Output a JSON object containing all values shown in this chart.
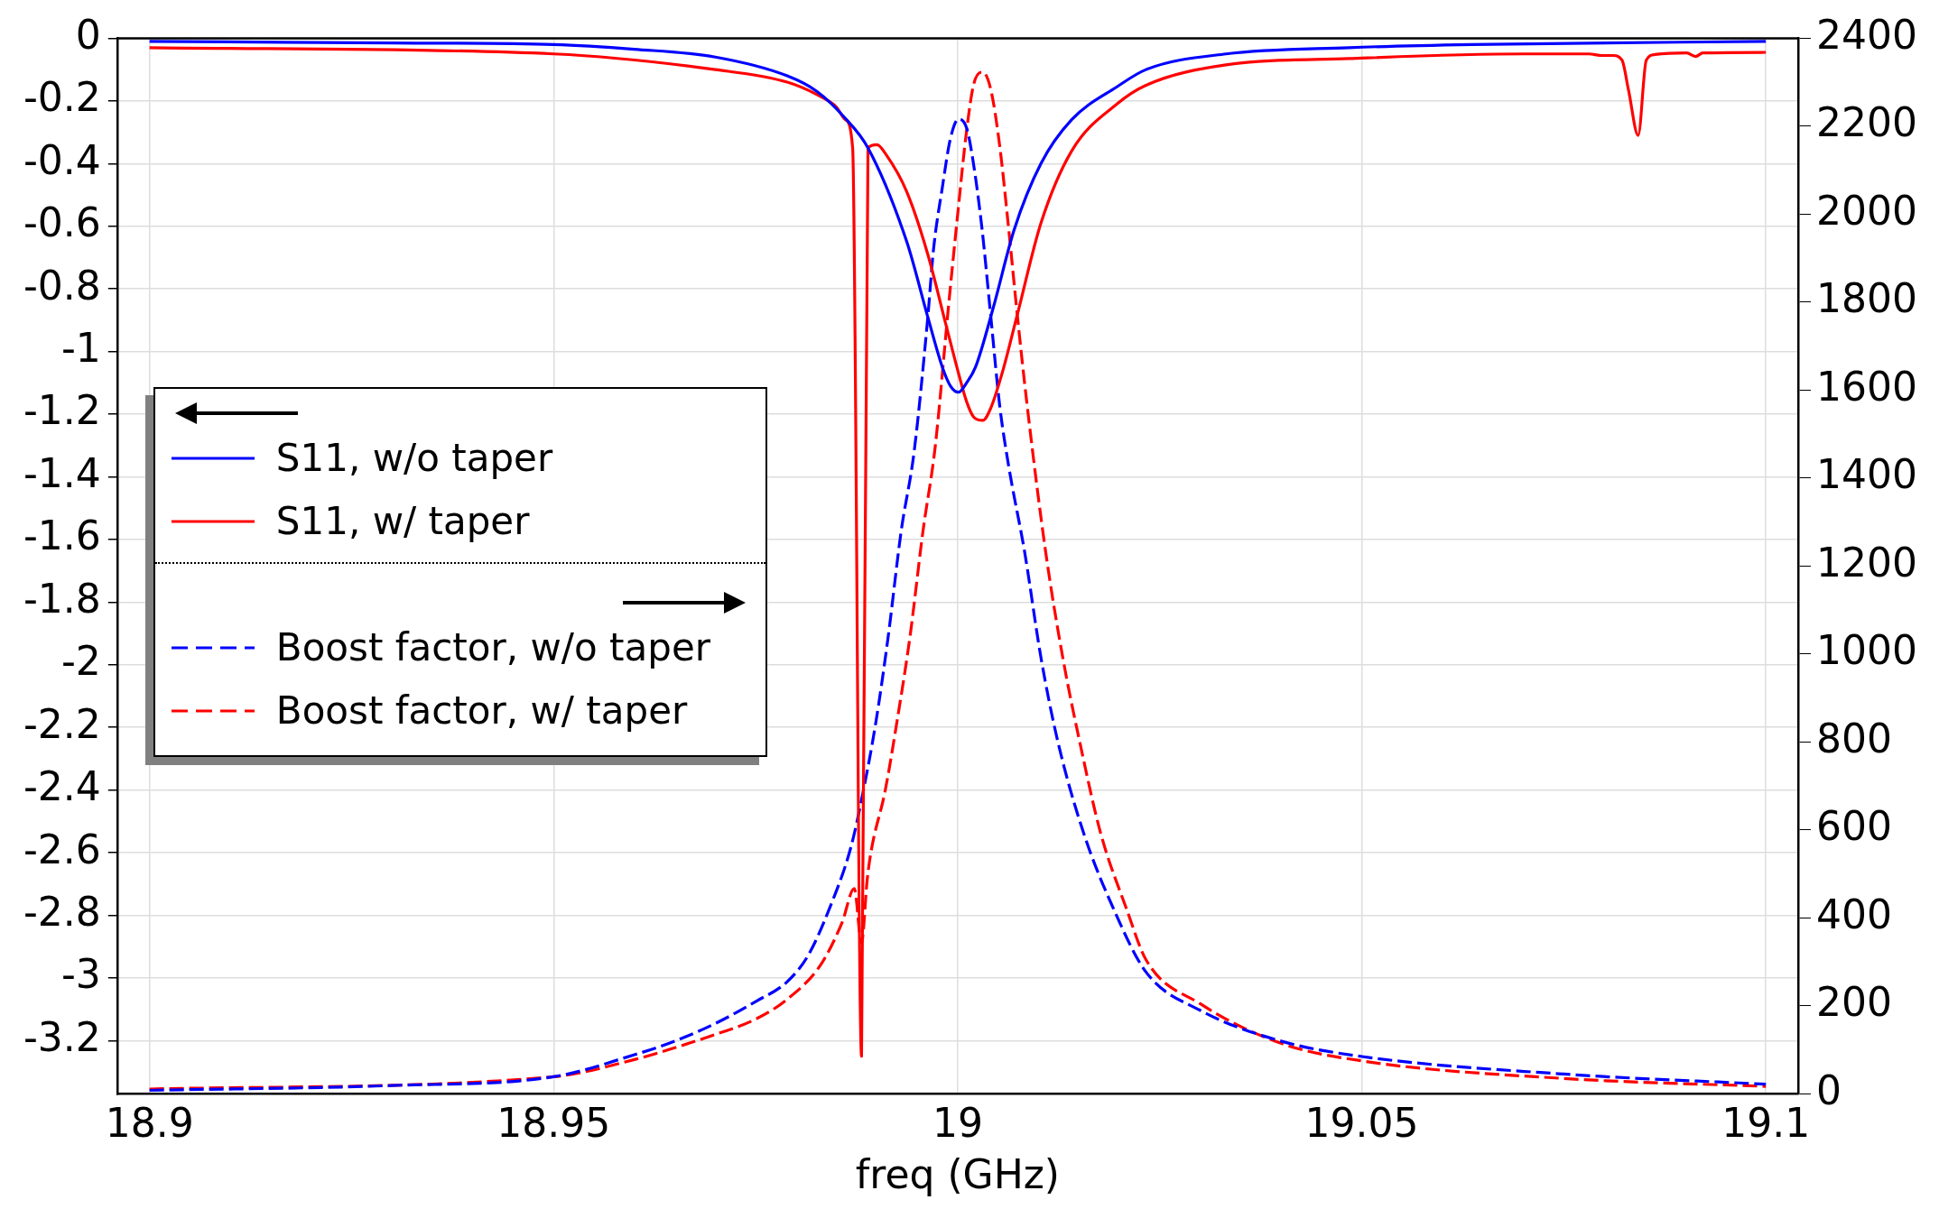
{
  "chart_data": {
    "type": "line",
    "xlabel": "freq (GHz)",
    "marker": "none",
    "grid": true,
    "legend": "left",
    "xlim": [
      18.896,
      19.104
    ],
    "xticks": [
      18.9,
      18.95,
      19,
      19.05,
      19.1
    ],
    "ylim": [
      -3.37,
      0
    ],
    "yticks": [
      -3.2,
      -3,
      -2.8,
      -2.6,
      -2.4,
      -2.2,
      -2,
      -1.8,
      -1.6,
      -1.4,
      -1.2,
      -1,
      -0.8,
      -0.6,
      -0.4,
      -0.2,
      0
    ],
    "y2lim": [
      0,
      2400
    ],
    "y2ticks": [
      0,
      200,
      400,
      600,
      800,
      1000,
      1200,
      1400,
      1600,
      1800,
      2000,
      2200,
      2400
    ],
    "series": [
      {
        "name": "S11, w/o taper",
        "color": "#0000ff",
        "axis": "y",
        "line_style": "solid",
        "x": [
          18.9,
          18.93,
          18.95,
          18.96,
          18.97,
          18.9789,
          18.9826,
          18.9859,
          18.9889,
          18.9937,
          18.9963,
          18.9981,
          18.9991,
          19.0001,
          19.0011,
          19.0022,
          19.0044,
          19.007,
          19.0103,
          19.0141,
          19.0197,
          19.0233,
          19.0332,
          19.0484,
          19.0636,
          19.1
        ],
        "values": [
          -0.01,
          -0.015,
          -0.02,
          -0.035,
          -0.06,
          -0.12,
          -0.17,
          -0.25,
          -0.35,
          -0.65,
          -0.89,
          -1.05,
          -1.11,
          -1.13,
          -1.1,
          -1.05,
          -0.86,
          -0.61,
          -0.4,
          -0.26,
          -0.155,
          -0.1,
          -0.05,
          -0.03,
          -0.02,
          -0.01
        ]
      },
      {
        "name": "S11, w/ taper",
        "color": "#ff0000",
        "axis": "y",
        "line_style": "solid",
        "x": [
          18.9,
          18.95,
          18.97,
          18.9789,
          18.9826,
          18.985,
          18.9861,
          18.987,
          18.9881,
          18.9889,
          18.99,
          18.9911,
          18.9937,
          18.9963,
          18.9986,
          19.0,
          19.0011,
          19.002,
          19.0031,
          19.0041,
          19.0056,
          19.0074,
          19.0103,
          19.0141,
          19.0197,
          19.0233,
          19.0332,
          19.0484,
          19.07,
          19.0781,
          19.0797,
          19.0811,
          19.0822,
          19.083,
          19.0842,
          19.0852,
          19.0863,
          19.0902,
          19.0913,
          19.0922,
          19.1
        ],
        "values": [
          -0.03,
          -0.05,
          -0.1,
          -0.14,
          -0.18,
          -0.22,
          -0.26,
          -0.35,
          -3.25,
          -0.35,
          -0.34,
          -0.37,
          -0.49,
          -0.69,
          -0.92,
          -1.06,
          -1.16,
          -1.21,
          -1.22,
          -1.18,
          -1.06,
          -0.88,
          -0.59,
          -0.36,
          -0.21,
          -0.15,
          -0.085,
          -0.065,
          -0.05,
          -0.05,
          -0.055,
          -0.055,
          -0.07,
          -0.165,
          -0.31,
          -0.07,
          -0.052,
          -0.047,
          -0.058,
          -0.047,
          -0.045
        ]
      },
      {
        "name": "Boost factor, w/o taper",
        "color": "#0000ff",
        "axis": "y2",
        "line_style": "dashed",
        "x": [
          18.9,
          18.93,
          18.95,
          18.96,
          18.965,
          18.97,
          18.975,
          18.9789,
          18.9815,
          18.9841,
          18.9868,
          18.9883,
          18.9899,
          18.9914,
          18.993,
          18.9946,
          18.9963,
          18.997,
          18.9981,
          18.9991,
          19.0001,
          19.0011,
          19.0019,
          19.003,
          19.0041,
          19.0052,
          19.0063,
          19.0083,
          19.0103,
          19.0124,
          19.0156,
          19.0193,
          19.0233,
          19.03,
          19.04,
          19.05,
          19.075,
          19.1
        ],
        "values": [
          8,
          19,
          39,
          89,
          120,
          160,
          210,
          255,
          315,
          420,
          562,
          687,
          848,
          1040,
          1279,
          1459,
          1766,
          1919,
          2061,
          2172,
          2216,
          2196,
          2121,
          1968,
          1766,
          1564,
          1428,
          1230,
          992,
          800,
          592,
          420,
          277,
          190,
          120,
          85,
          45,
          22
        ]
      },
      {
        "name": "Boost factor, w/ taper",
        "color": "#ff0000",
        "axis": "y2",
        "line_style": "dashed",
        "x": [
          18.9,
          18.95,
          18.96,
          18.965,
          18.97,
          18.975,
          18.9789,
          18.9831,
          18.9857,
          18.9872,
          18.9881,
          18.9888,
          18.9893,
          18.991,
          18.9925,
          18.9941,
          18.9957,
          18.9972,
          18.9989,
          19.0,
          19.0011,
          19.002,
          19.0031,
          19.0041,
          19.0052,
          19.0063,
          19.0074,
          19.0086,
          19.0109,
          19.013,
          19.0151,
          19.0177,
          19.0209,
          19.0233,
          19.03,
          19.04,
          19.05,
          19.075,
          19.1
        ],
        "values": [
          11,
          39,
          78,
          105,
          135,
          170,
          215,
          295,
          390,
          467,
          343,
          487,
          553,
          687,
          848,
          1040,
          1279,
          1469,
          1798,
          2000,
          2190,
          2297,
          2323,
          2283,
          2155,
          1968,
          1766,
          1564,
          1230,
          992,
          800,
          592,
          420,
          305,
          205,
          115,
          75,
          35,
          17
        ]
      }
    ]
  }
}
